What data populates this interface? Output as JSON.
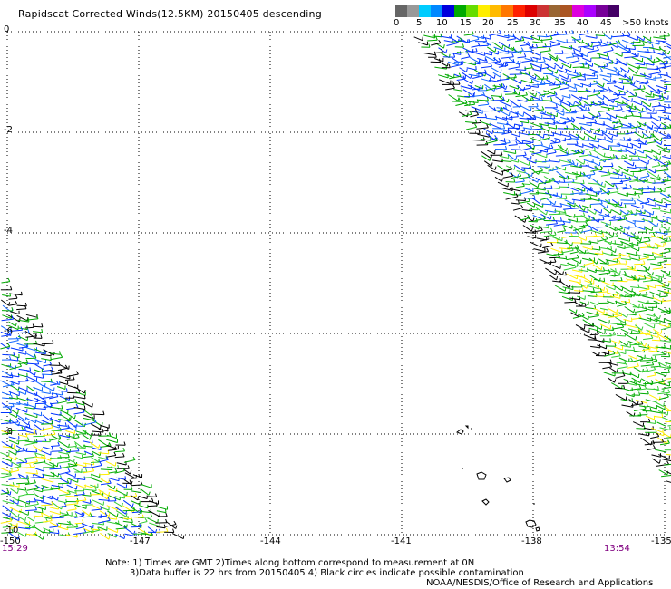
{
  "title": "Rapidscat Corrected Winds(12.5KM) 20150405 descending",
  "legend": {
    "colors": [
      "#666666",
      "#999999",
      "#00ccff",
      "#0088ff",
      "#0000dd",
      "#00aa00",
      "#66dd00",
      "#ffee00",
      "#ffbb00",
      "#ff7700",
      "#ff2200",
      "#dd0000",
      "#cc3333",
      "#996633",
      "#aa5522",
      "#dd00dd",
      "#aa00ff",
      "#770099",
      "#440066"
    ],
    "labels": [
      "0",
      "5",
      "10",
      "15",
      "20",
      "25",
      "30",
      "35",
      "40",
      "45",
      ">50 knots"
    ]
  },
  "lat_labels": [
    "0",
    "-2",
    "-4",
    "-6",
    "-8",
    "-10"
  ],
  "lon_labels": [
    "-150",
    "-147",
    "-144",
    "-141",
    "-138",
    "-135"
  ],
  "times": {
    "left": "15:29",
    "right": "13:54"
  },
  "notes": {
    "line1": "Note: 1) Times are GMT 2)Times along bottom correspond to measurement at 0N",
    "line2": "3)Data buffer is 22 hrs from 20150405 4) Black circles indicate possible contamination",
    "line3": "NOAA/NESDIS/Office of Research and Applications"
  },
  "map": {
    "lon_range": [
      -150,
      -135
    ],
    "lat_range": [
      -10,
      0
    ],
    "wind_colors": [
      "#0033ff",
      "#1166ff",
      "#00aa00",
      "#33cc33",
      "#000000",
      "#ffee00"
    ]
  }
}
